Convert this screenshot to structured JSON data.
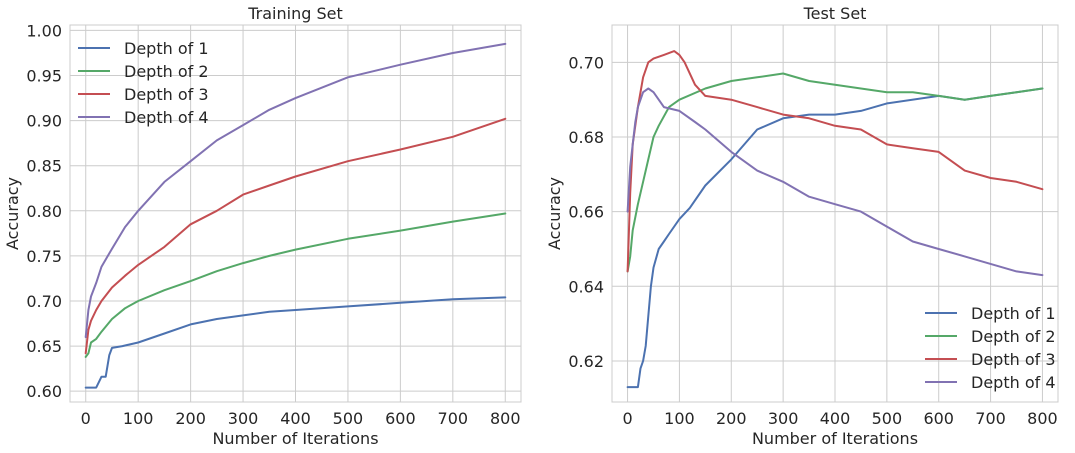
{
  "chart_data": [
    {
      "type": "line",
      "title": "Training Set",
      "xlabel": "Number of Iterations",
      "ylabel": "Accuracy",
      "xlim": [
        -30,
        830
      ],
      "ylim": [
        0.588,
        1.006
      ],
      "xticks": [
        0,
        100,
        200,
        300,
        400,
        500,
        600,
        700,
        800
      ],
      "yticks": [
        0.6,
        0.65,
        0.7,
        0.75,
        0.8,
        0.85,
        0.9,
        0.95,
        1.0
      ],
      "ytick_labels": [
        "0.60",
        "0.65",
        "0.70",
        "0.75",
        "0.80",
        "0.85",
        "0.90",
        "0.95",
        "1.00"
      ],
      "grid": true,
      "legend_position": "top-left",
      "series": [
        {
          "name": "Depth of 1",
          "color": "#4c72b0",
          "x": [
            0,
            20,
            30,
            38,
            45,
            50,
            70,
            100,
            150,
            200,
            250,
            300,
            350,
            400,
            500,
            600,
            700,
            800
          ],
          "y": [
            0.604,
            0.604,
            0.616,
            0.616,
            0.64,
            0.648,
            0.65,
            0.654,
            0.664,
            0.674,
            0.68,
            0.684,
            0.688,
            0.69,
            0.694,
            0.698,
            0.702,
            0.704
          ]
        },
        {
          "name": "Depth of 2",
          "color": "#55a868",
          "x": [
            0,
            5,
            10,
            20,
            30,
            50,
            75,
            100,
            150,
            200,
            250,
            300,
            350,
            400,
            500,
            600,
            700,
            800
          ],
          "y": [
            0.638,
            0.642,
            0.654,
            0.658,
            0.666,
            0.68,
            0.692,
            0.7,
            0.712,
            0.722,
            0.733,
            0.742,
            0.75,
            0.757,
            0.769,
            0.778,
            0.788,
            0.797
          ]
        },
        {
          "name": "Depth of 3",
          "color": "#c44e52",
          "x": [
            0,
            5,
            10,
            20,
            30,
            50,
            75,
            100,
            150,
            200,
            250,
            300,
            350,
            400,
            500,
            600,
            700,
            800
          ],
          "y": [
            0.642,
            0.668,
            0.678,
            0.69,
            0.7,
            0.715,
            0.728,
            0.74,
            0.76,
            0.785,
            0.8,
            0.818,
            0.828,
            0.838,
            0.855,
            0.868,
            0.882,
            0.902
          ]
        },
        {
          "name": "Depth of 4",
          "color": "#8172b2",
          "x": [
            0,
            5,
            10,
            20,
            30,
            50,
            75,
            100,
            150,
            200,
            250,
            300,
            350,
            400,
            500,
            600,
            700,
            800
          ],
          "y": [
            0.66,
            0.69,
            0.705,
            0.72,
            0.738,
            0.758,
            0.782,
            0.8,
            0.832,
            0.855,
            0.878,
            0.895,
            0.912,
            0.925,
            0.948,
            0.962,
            0.975,
            0.985
          ]
        }
      ]
    },
    {
      "type": "line",
      "title": "Test Set",
      "xlabel": "Number of Iterations",
      "ylabel": "Accuracy",
      "xlim": [
        -30,
        830
      ],
      "ylim": [
        0.609,
        0.71
      ],
      "xticks": [
        0,
        100,
        200,
        300,
        400,
        500,
        600,
        700,
        800
      ],
      "yticks": [
        0.62,
        0.64,
        0.66,
        0.68,
        0.7
      ],
      "ytick_labels": [
        "0.62",
        "0.64",
        "0.66",
        "0.68",
        "0.70"
      ],
      "grid": true,
      "legend_position": "lower-right",
      "series": [
        {
          "name": "Depth of 1",
          "color": "#4c72b0",
          "x": [
            0,
            20,
            25,
            30,
            35,
            40,
            45,
            50,
            60,
            70,
            80,
            100,
            120,
            150,
            200,
            250,
            300,
            350,
            400,
            450,
            500,
            600,
            650,
            700,
            750,
            800
          ],
          "y": [
            0.613,
            0.613,
            0.618,
            0.62,
            0.624,
            0.632,
            0.64,
            0.645,
            0.65,
            0.652,
            0.654,
            0.658,
            0.661,
            0.667,
            0.674,
            0.682,
            0.685,
            0.686,
            0.686,
            0.687,
            0.689,
            0.691,
            0.69,
            0.691,
            0.692,
            0.693
          ]
        },
        {
          "name": "Depth of 2",
          "color": "#55a868",
          "x": [
            0,
            5,
            10,
            20,
            30,
            40,
            50,
            60,
            80,
            100,
            150,
            200,
            250,
            300,
            350,
            400,
            450,
            500,
            550,
            600,
            650,
            700,
            750,
            800
          ],
          "y": [
            0.644,
            0.648,
            0.655,
            0.662,
            0.668,
            0.674,
            0.68,
            0.683,
            0.688,
            0.69,
            0.693,
            0.695,
            0.696,
            0.697,
            0.695,
            0.694,
            0.693,
            0.692,
            0.692,
            0.691,
            0.69,
            0.691,
            0.692,
            0.693
          ]
        },
        {
          "name": "Depth of 3",
          "color": "#c44e52",
          "x": [
            0,
            5,
            10,
            20,
            30,
            40,
            50,
            70,
            90,
            100,
            110,
            130,
            150,
            200,
            250,
            300,
            350,
            400,
            450,
            500,
            550,
            600,
            650,
            700,
            750,
            800
          ],
          "y": [
            0.644,
            0.665,
            0.678,
            0.688,
            0.696,
            0.7,
            0.701,
            0.702,
            0.703,
            0.702,
            0.7,
            0.694,
            0.691,
            0.69,
            0.688,
            0.686,
            0.685,
            0.683,
            0.682,
            0.678,
            0.677,
            0.676,
            0.671,
            0.669,
            0.668,
            0.666
          ]
        },
        {
          "name": "Depth of 4",
          "color": "#8172b2",
          "x": [
            0,
            5,
            10,
            15,
            20,
            30,
            40,
            50,
            70,
            100,
            130,
            150,
            200,
            250,
            300,
            350,
            400,
            450,
            500,
            550,
            600,
            650,
            700,
            750,
            800
          ],
          "y": [
            0.66,
            0.672,
            0.678,
            0.684,
            0.688,
            0.692,
            0.693,
            0.692,
            0.688,
            0.687,
            0.684,
            0.682,
            0.676,
            0.671,
            0.668,
            0.664,
            0.662,
            0.66,
            0.656,
            0.652,
            0.65,
            0.648,
            0.646,
            0.644,
            0.643
          ]
        }
      ]
    }
  ]
}
